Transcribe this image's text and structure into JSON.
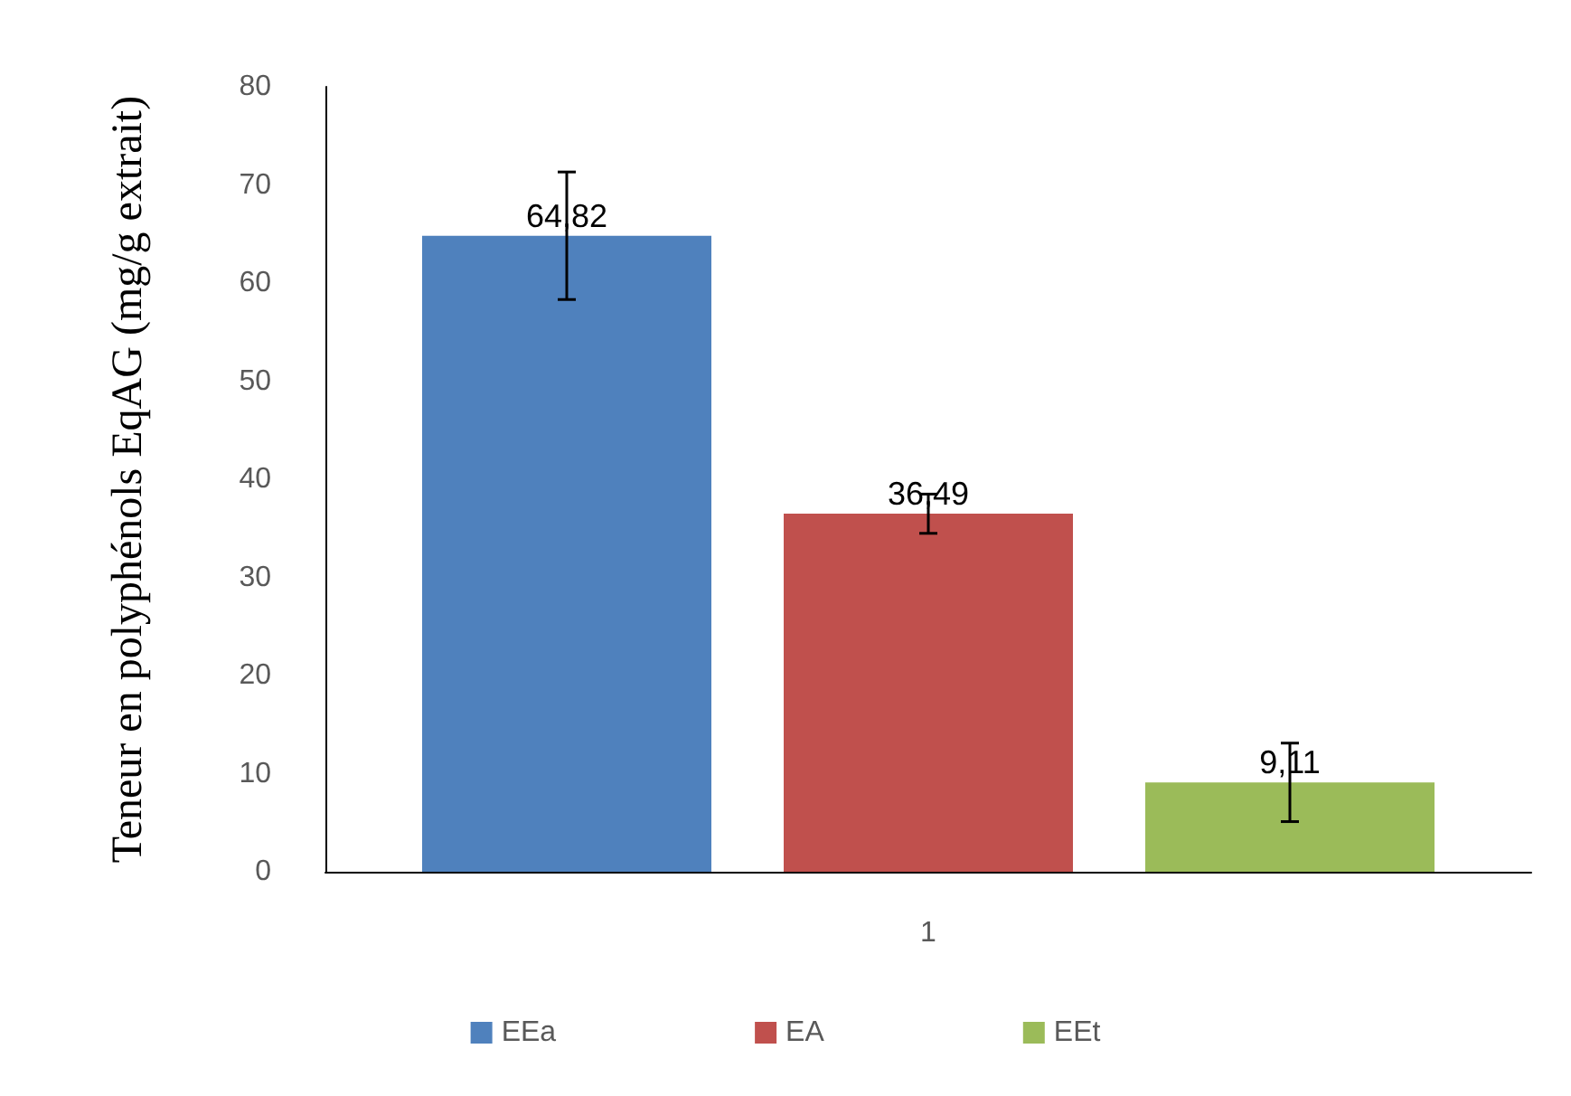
{
  "chart_data": {
    "type": "bar",
    "ylabel": "Teneur en polyphénols EqAG (mg/g extrait)",
    "categories": [
      "1"
    ],
    "series": [
      {
        "name": "EEa",
        "color": "#4f81bd",
        "values": [
          64.82
        ],
        "value_labels": [
          "64,82"
        ],
        "errors": [
          6.5
        ]
      },
      {
        "name": "EA",
        "color": "#c0504d",
        "values": [
          36.49
        ],
        "value_labels": [
          "36,49"
        ],
        "errors": [
          2
        ]
      },
      {
        "name": "EEt",
        "color": "#9bbb59",
        "values": [
          9.11
        ],
        "value_labels": [
          "9,11"
        ],
        "errors": [
          4
        ]
      }
    ],
    "ylim": [
      0,
      80
    ],
    "yticks": [
      0,
      10,
      20,
      30,
      40,
      50,
      60,
      70,
      80
    ],
    "grid": false,
    "legend": "bottom"
  }
}
